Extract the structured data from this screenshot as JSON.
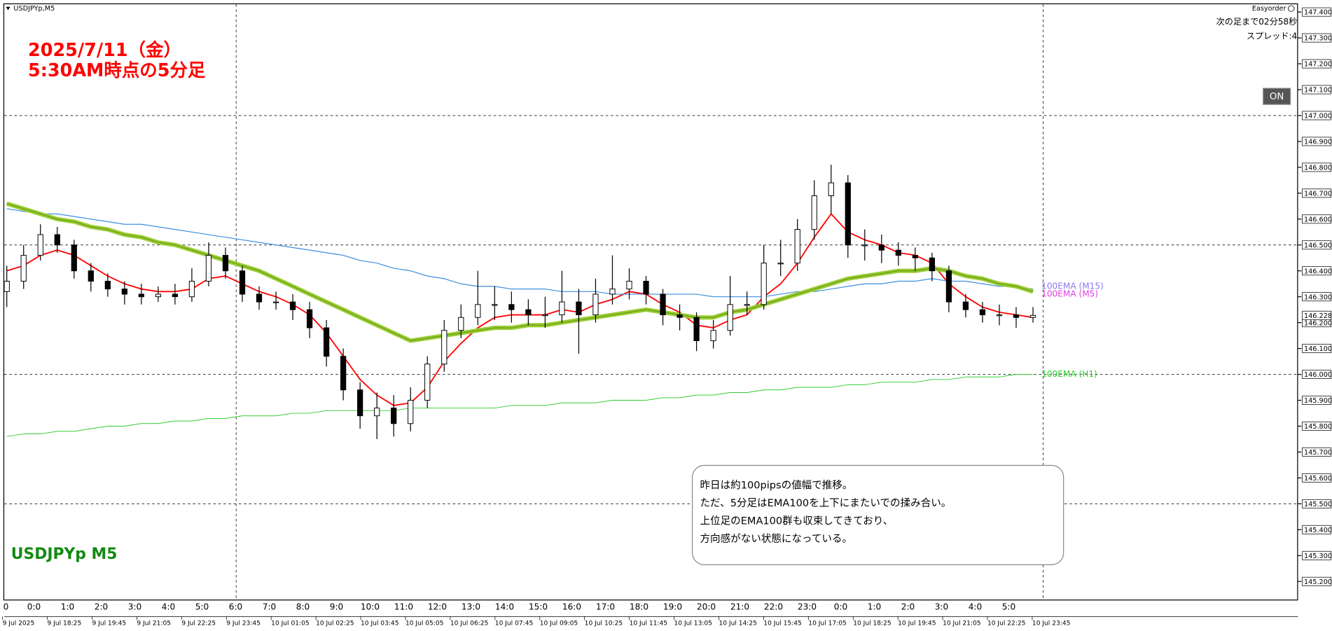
{
  "header": {
    "symbol": "USDJPYp,M5",
    "panel": "Easyorder",
    "countdown": "次の足まで02分58秒",
    "spread": "スプレッド:4",
    "button": "ON"
  },
  "chart_data": {
    "type": "candlestick",
    "title": [
      "2025/7/11（金）",
      "5:30AM時点の5分足"
    ],
    "symbol_label": "USDJPYp M5",
    "annotation": [
      "昨日は約100pipsの値幅で推移。",
      "ただ、5分足はEMA100を上下にまたいでの揉み合い。",
      "上位足のEMA100群も収束してきており、",
      "方向感がない状態になっている。"
    ],
    "color_up": "#ffffff",
    "color_down": "#000000",
    "open": [
      146.32,
      146.36,
      146.46,
      146.54,
      146.5,
      146.4,
      146.36,
      146.33,
      146.31,
      146.3,
      146.31,
      146.3,
      146.36,
      146.46,
      146.4,
      146.31,
      146.28,
      146.28,
      146.25,
      146.18,
      146.07,
      145.94,
      145.84,
      145.87,
      145.81,
      145.9,
      146.04,
      146.17,
      146.22,
      146.27,
      146.27,
      146.25,
      146.23,
      146.23,
      146.28,
      146.23,
      146.31,
      146.33,
      146.36,
      146.31,
      146.23,
      146.22,
      146.13,
      146.17,
      146.27,
      146.27,
      146.43,
      146.43,
      146.56,
      146.69,
      146.74,
      146.5,
      146.5,
      146.48,
      146.46,
      146.45,
      146.4,
      146.28,
      146.25,
      146.23,
      146.23,
      146.22
    ],
    "high": [
      146.42,
      146.5,
      146.58,
      146.57,
      146.52,
      146.43,
      146.39,
      146.36,
      146.35,
      146.34,
      146.35,
      146.41,
      146.51,
      146.49,
      146.42,
      146.34,
      146.32,
      146.31,
      146.28,
      146.21,
      146.1,
      145.97,
      145.93,
      145.92,
      145.95,
      146.07,
      146.21,
      146.27,
      146.4,
      146.34,
      146.32,
      146.29,
      146.3,
      146.4,
      146.33,
      146.37,
      146.46,
      146.41,
      146.38,
      146.33,
      146.27,
      146.24,
      146.21,
      146.38,
      146.32,
      146.5,
      146.52,
      146.6,
      146.75,
      146.81,
      146.77,
      146.56,
      146.54,
      146.51,
      146.49,
      146.47,
      146.42,
      146.31,
      146.28,
      146.27,
      146.26,
      146.26
    ],
    "low": [
      146.26,
      146.33,
      146.44,
      146.47,
      146.37,
      146.32,
      146.3,
      146.27,
      146.27,
      146.28,
      146.27,
      146.28,
      146.34,
      146.37,
      146.28,
      146.25,
      146.25,
      146.21,
      146.14,
      146.03,
      145.9,
      145.79,
      145.75,
      145.76,
      145.78,
      145.87,
      146.01,
      146.14,
      146.19,
      146.21,
      146.2,
      146.19,
      146.18,
      146.2,
      146.08,
      146.2,
      146.27,
      146.29,
      146.27,
      146.19,
      146.17,
      146.09,
      146.1,
      146.15,
      146.23,
      146.25,
      146.38,
      146.4,
      146.52,
      146.62,
      146.45,
      146.44,
      146.43,
      146.42,
      146.4,
      146.36,
      146.24,
      146.22,
      146.2,
      146.19,
      146.18,
      146.2
    ],
    "close": [
      146.36,
      146.46,
      146.54,
      146.5,
      146.4,
      146.36,
      146.33,
      146.31,
      146.3,
      146.31,
      146.3,
      146.36,
      146.46,
      146.4,
      146.31,
      146.28,
      146.28,
      146.25,
      146.18,
      146.07,
      145.94,
      145.84,
      145.87,
      145.81,
      145.9,
      146.04,
      146.17,
      146.22,
      146.27,
      146.27,
      146.25,
      146.23,
      146.23,
      146.28,
      146.23,
      146.31,
      146.33,
      146.36,
      146.31,
      146.23,
      146.22,
      146.13,
      146.17,
      146.27,
      146.27,
      146.43,
      146.43,
      146.56,
      146.69,
      146.74,
      146.5,
      146.5,
      146.48,
      146.46,
      146.45,
      146.4,
      146.28,
      146.25,
      146.23,
      146.23,
      146.22,
      146.228
    ],
    "series": [
      {
        "color": "#ff0000",
        "values": [
          146.4,
          146.42,
          146.46,
          146.48,
          146.46,
          146.42,
          146.38,
          146.35,
          146.33,
          146.32,
          146.32,
          146.33,
          146.37,
          146.38,
          146.35,
          146.32,
          146.3,
          146.27,
          146.23,
          146.16,
          146.07,
          145.98,
          145.92,
          145.88,
          145.89,
          145.95,
          146.05,
          146.12,
          146.18,
          146.22,
          146.23,
          146.23,
          146.23,
          146.25,
          146.24,
          146.27,
          146.29,
          146.32,
          146.31,
          146.27,
          146.24,
          146.19,
          146.18,
          146.21,
          146.23,
          146.3,
          146.35,
          146.43,
          146.53,
          146.62,
          146.55,
          146.52,
          146.5,
          146.47,
          146.46,
          146.43,
          146.35,
          146.3,
          146.26,
          146.24,
          146.23,
          146.22
        ]
      },
      {
        "name": "100EMA (M15)",
        "color": "#3d8fe0",
        "values": [
          146.64,
          146.63,
          146.62,
          146.62,
          146.61,
          146.6,
          146.59,
          146.58,
          146.58,
          146.57,
          146.56,
          146.55,
          146.54,
          146.53,
          146.52,
          146.51,
          146.5,
          146.49,
          146.48,
          146.47,
          146.46,
          146.44,
          146.43,
          146.41,
          146.4,
          146.38,
          146.37,
          146.35,
          146.34,
          146.34,
          146.33,
          146.33,
          146.33,
          146.32,
          146.32,
          146.32,
          146.31,
          146.31,
          146.31,
          146.31,
          146.31,
          146.31,
          146.3,
          146.3,
          146.3,
          146.3,
          146.31,
          146.32,
          146.32,
          146.33,
          146.34,
          146.35,
          146.35,
          146.36,
          146.36,
          146.37,
          146.36,
          146.36,
          146.35,
          146.34,
          146.34,
          146.33
        ]
      },
      {
        "name": "100EMA (M5)",
        "color": "#9acd32",
        "values": [
          146.66,
          146.64,
          146.62,
          146.6,
          146.59,
          146.57,
          146.56,
          146.54,
          146.53,
          146.51,
          146.5,
          146.48,
          146.46,
          146.44,
          146.42,
          146.4,
          146.37,
          146.34,
          146.31,
          146.28,
          146.25,
          146.22,
          146.19,
          146.16,
          146.13,
          146.14,
          146.15,
          146.16,
          146.17,
          146.18,
          146.18,
          146.19,
          146.19,
          146.2,
          146.21,
          146.22,
          146.23,
          146.24,
          146.25,
          146.24,
          146.23,
          146.22,
          146.22,
          146.24,
          146.25,
          146.27,
          146.29,
          146.31,
          146.33,
          146.35,
          146.37,
          146.38,
          146.39,
          146.4,
          146.4,
          146.41,
          146.4,
          146.38,
          146.37,
          146.35,
          146.34,
          146.32
        ]
      },
      {
        "name": "100EMA (H1)",
        "color": "#32cd32",
        "values": [
          145.76,
          145.77,
          145.77,
          145.78,
          145.78,
          145.79,
          145.8,
          145.8,
          145.81,
          145.81,
          145.82,
          145.82,
          145.83,
          145.83,
          145.84,
          145.84,
          145.84,
          145.85,
          145.85,
          145.86,
          145.86,
          145.86,
          145.86,
          145.86,
          145.87,
          145.87,
          145.87,
          145.87,
          145.87,
          145.87,
          145.88,
          145.88,
          145.88,
          145.89,
          145.89,
          145.89,
          145.9,
          145.9,
          145.9,
          145.91,
          145.91,
          145.92,
          145.92,
          145.93,
          145.93,
          145.94,
          145.94,
          145.95,
          145.95,
          145.95,
          145.96,
          145.96,
          145.97,
          145.97,
          145.97,
          145.98,
          145.98,
          145.99,
          145.99,
          145.99,
          146.0,
          146.0
        ]
      }
    ],
    "ylim": [
      145.13,
      147.43
    ],
    "yticks": [
      {
        "value": 147.4,
        "label": "147.400"
      },
      {
        "value": 147.3,
        "label": "147.300"
      },
      {
        "value": 147.2,
        "label": "147.200"
      },
      {
        "value": 147.1,
        "label": "147.100"
      },
      {
        "value": 147.0,
        "label": "147.000"
      },
      {
        "value": 146.9,
        "label": "146.900"
      },
      {
        "value": 146.8,
        "label": "146.800"
      },
      {
        "value": 146.7,
        "label": "146.700"
      },
      {
        "value": 146.6,
        "label": "146.600"
      },
      {
        "value": 146.5,
        "label": "146.500"
      },
      {
        "value": 146.4,
        "label": "146.400"
      },
      {
        "value": 146.3,
        "label": "146.300"
      },
      {
        "value": 146.2,
        "label": "146.200"
      },
      {
        "value": 146.1,
        "label": "146.100"
      },
      {
        "value": 146.0,
        "label": "146.000"
      },
      {
        "value": 145.9,
        "label": "145.900"
      },
      {
        "value": 145.8,
        "label": "145.800"
      },
      {
        "value": 145.7,
        "label": "145.700"
      },
      {
        "value": 145.6,
        "label": "145.600"
      },
      {
        "value": 145.5,
        "label": "145.500"
      },
      {
        "value": 145.4,
        "label": "145.400"
      },
      {
        "value": 145.3,
        "label": "145.300"
      },
      {
        "value": 145.2,
        "label": "145.200"
      }
    ],
    "grid_lines": [
      147.0,
      146.5,
      146.0,
      145.5
    ],
    "hour_labels": [
      "0",
      "0:0",
      "1:0",
      "2:0",
      "3:0",
      "4:0",
      "5:0",
      "6:0",
      "7:0",
      "8:0",
      "9:0",
      "10:0",
      "11:0",
      "12:0",
      "13:0",
      "14:0",
      "15:0",
      "16:0",
      "17:0",
      "18:0",
      "19:0",
      "20:0",
      "21:0",
      "22:0",
      "23:0",
      "0:0",
      "1:0",
      "2:0",
      "3:0",
      "4:0",
      "5:0"
    ],
    "date_labels": [
      "9 Jul 2025",
      "9 Jul 18:25",
      "9 Jul 19:45",
      "9 Jul 21:05",
      "9 Jul 22:25",
      "9 Jul 23:45",
      "10 Jul 01:05",
      "10 Jul 02:25",
      "10 Jul 03:45",
      "10 Jul 05:05",
      "10 Jul 06:25",
      "10 Jul 07:45",
      "10 Jul 09:05",
      "10 Jul 10:25",
      "10 Jul 11:45",
      "10 Jul 13:05",
      "10 Jul 14:25",
      "10 Jul 15:45",
      "10 Jul 17:05",
      "10 Jul 18:25",
      "10 Jul 19:45",
      "10 Jul 21:05",
      "10 Jul 22:25",
      "10 Jul 23:45"
    ]
  }
}
